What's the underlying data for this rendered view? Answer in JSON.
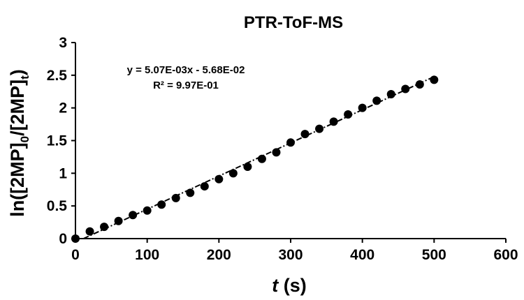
{
  "chart_data": {
    "type": "scatter",
    "title": "PTR-ToF-MS",
    "xlabel": {
      "italic": "t",
      "rest": " (s)"
    },
    "ylabel": {
      "base": "ln([2MP]",
      "sub1": "0",
      "mid": "/[2MP]",
      "sub2": "t",
      "end": ")"
    },
    "xlim": [
      0,
      600
    ],
    "ylim": [
      0,
      3
    ],
    "x_ticks": [
      "0",
      "100",
      "200",
      "300",
      "400",
      "500",
      "600"
    ],
    "y_ticks": [
      "0",
      "0.5",
      "1",
      "1.5",
      "2",
      "2.5",
      "3"
    ],
    "grid": false,
    "series": [
      {
        "marker_color": "#000000",
        "x": [
          0,
          20,
          40,
          60,
          80,
          100,
          120,
          140,
          160,
          180,
          200,
          220,
          240,
          260,
          280,
          300,
          320,
          340,
          360,
          380,
          400,
          420,
          440,
          460,
          480,
          500
        ],
        "y": [
          0.0,
          0.11,
          0.18,
          0.27,
          0.36,
          0.43,
          0.52,
          0.62,
          0.7,
          0.8,
          0.91,
          1.0,
          1.1,
          1.22,
          1.32,
          1.47,
          1.6,
          1.68,
          1.79,
          1.9,
          2.0,
          2.11,
          2.21,
          2.29,
          2.36,
          2.43
        ]
      }
    ],
    "trendline": {
      "style": "dash-dot",
      "color": "#000000",
      "slope": 0.00507,
      "intercept": -0.0568,
      "x_range": [
        0,
        500
      ]
    },
    "annotations": {
      "equation": "y = 5.07E-03x - 5.68E-02",
      "r_squared": "R² = 9.97E-01"
    }
  }
}
